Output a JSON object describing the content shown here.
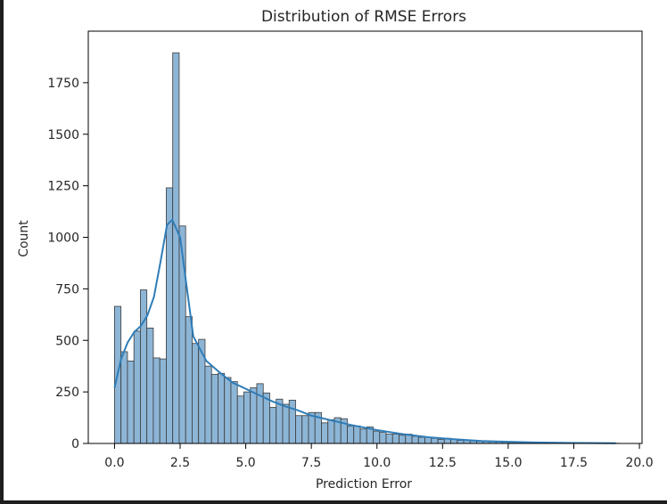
{
  "chart_data": {
    "type": "bar",
    "title": "Distribution of RMSE Errors",
    "xlabel": "Prediction Error",
    "ylabel": "Count",
    "xlim": [
      -1.0,
      20.1
    ],
    "ylim": [
      0,
      2000
    ],
    "xticks": [
      "0.0",
      "2.5",
      "5.0",
      "7.5",
      "10.0",
      "12.5",
      "15.0",
      "17.5",
      "20.0"
    ],
    "yticks": [
      "0",
      "250",
      "500",
      "750",
      "1000",
      "1250",
      "1500",
      "1750"
    ],
    "bin_start": 0.0,
    "bin_width": 0.2464,
    "counts": [
      665,
      445,
      400,
      545,
      745,
      560,
      415,
      410,
      1240,
      1895,
      1055,
      615,
      485,
      505,
      375,
      335,
      340,
      320,
      300,
      230,
      250,
      270,
      290,
      245,
      175,
      215,
      190,
      210,
      135,
      135,
      150,
      150,
      100,
      115,
      125,
      120,
      85,
      85,
      70,
      80,
      60,
      55,
      45,
      45,
      40,
      45,
      35,
      30,
      30,
      25,
      20,
      25,
      20,
      15,
      15,
      12,
      10,
      10,
      8,
      8,
      6,
      5,
      5,
      4,
      4,
      3,
      3,
      3,
      2,
      2,
      2,
      1,
      1,
      1,
      1,
      1,
      1,
      1
    ],
    "kde": {
      "x": [
        0,
        0.25,
        0.5,
        0.75,
        1.0,
        1.25,
        1.5,
        1.75,
        2.0,
        2.2,
        2.5,
        2.75,
        3.0,
        3.5,
        4.0,
        4.5,
        5.0,
        5.5,
        6.0,
        6.5,
        7.0,
        7.5,
        8.0,
        9.0,
        10.0,
        11.0,
        12.0,
        13.0,
        14.0,
        15.0,
        16.0,
        17.0,
        18.0,
        19.1
      ],
      "y": [
        270,
        410,
        490,
        540,
        570,
        620,
        710,
        880,
        1060,
        1085,
        1000,
        760,
        520,
        400,
        345,
        295,
        265,
        235,
        205,
        180,
        160,
        135,
        120,
        90,
        65,
        45,
        30,
        20,
        12,
        8,
        5,
        3,
        2,
        1
      ]
    },
    "colors": {
      "bar_fill": "#8db5d6",
      "bar_edge": "#3b3b3b",
      "kde_line": "#2f7db8"
    }
  }
}
